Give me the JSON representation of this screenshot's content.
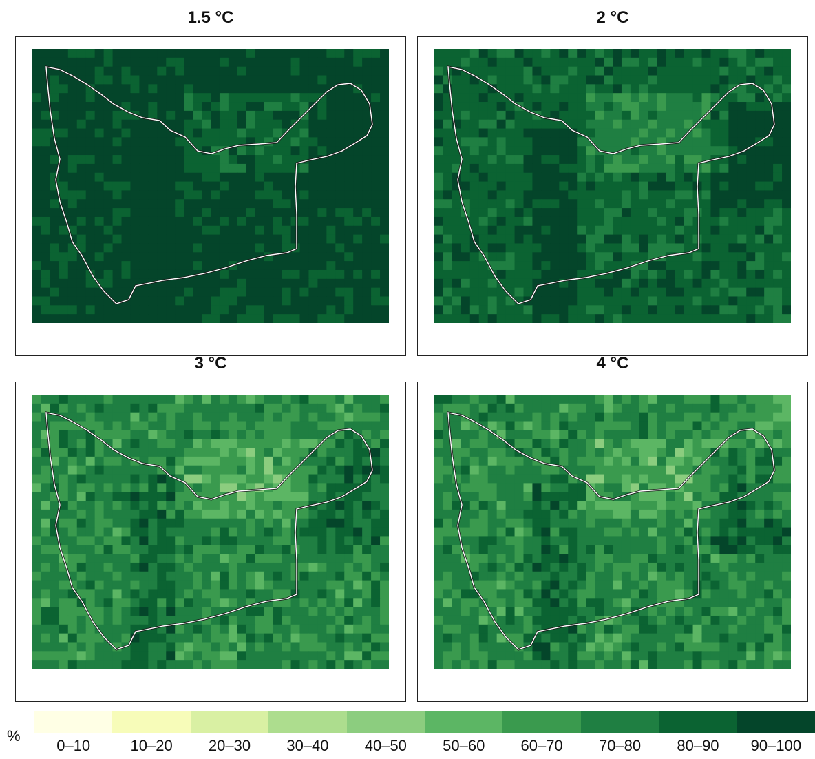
{
  "panels": [
    {
      "title": "1.5 °C",
      "level": 0
    },
    {
      "title": "2 °C",
      "level": 1
    },
    {
      "title": "3 °C",
      "level": 2
    },
    {
      "title": "4 °C",
      "level": 3
    }
  ],
  "legend": {
    "unit": "%",
    "bins": [
      {
        "label": "0–10",
        "color": "#ffffe5"
      },
      {
        "label": "10–20",
        "color": "#f7fcb9"
      },
      {
        "label": "20–30",
        "color": "#d9f0a3"
      },
      {
        "label": "30–40",
        "color": "#addd8e"
      },
      {
        "label": "40–50",
        "color": "#8ccd7f"
      },
      {
        "label": "50–60",
        "color": "#5cb664"
      },
      {
        "label": "60–70",
        "color": "#3a9a4e"
      },
      {
        "label": "70–80",
        "color": "#1f7f42"
      },
      {
        "label": "80–90",
        "color": "#0b6332"
      },
      {
        "label": "90–100",
        "color": "#04452a"
      }
    ]
  },
  "boundary_color": "#ffffff"
}
